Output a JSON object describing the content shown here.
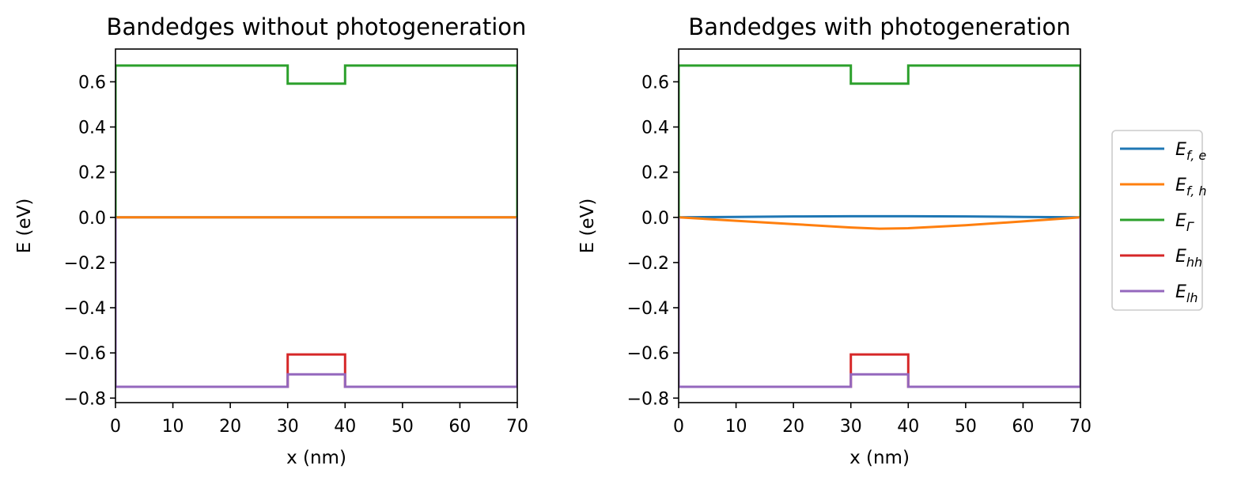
{
  "chart_data": [
    {
      "type": "line",
      "title": "Bandedges without photogeneration",
      "xlabel": "x (nm)",
      "ylabel": "E (eV)",
      "xlim": [
        0,
        70
      ],
      "ylim": [
        -0.82,
        0.745
      ],
      "xticks": [
        0,
        10,
        20,
        30,
        40,
        50,
        60,
        70
      ],
      "yticks": [
        -0.8,
        -0.6,
        -0.4,
        -0.2,
        0.0,
        0.2,
        0.4,
        0.6
      ],
      "series": [
        {
          "name": "E_f,e",
          "color": "#1f77b4",
          "x": [
            0,
            70
          ],
          "y": [
            0.0,
            0.0
          ]
        },
        {
          "name": "E_f,h",
          "color": "#ff7f0e",
          "x": [
            0,
            70
          ],
          "y": [
            0.0,
            0.0
          ]
        },
        {
          "name": "E_Γ",
          "color": "#2ca02c",
          "x": [
            0,
            0,
            30,
            30,
            40,
            40,
            70,
            70
          ],
          "y": [
            -0.75,
            0.672,
            0.672,
            0.592,
            0.592,
            0.672,
            0.672,
            -0.75
          ]
        },
        {
          "name": "E_hh",
          "color": "#d62728",
          "x": [
            0,
            30,
            30,
            40,
            40,
            70
          ],
          "y": [
            -0.75,
            -0.75,
            -0.607,
            -0.607,
            -0.75,
            -0.75
          ]
        },
        {
          "name": "E_lh",
          "color": "#9467bd",
          "x": [
            0,
            0,
            30,
            30,
            40,
            40,
            70,
            70
          ],
          "y": [
            0.0,
            -0.75,
            -0.75,
            -0.695,
            -0.695,
            -0.75,
            -0.75,
            0.0
          ]
        }
      ]
    },
    {
      "type": "line",
      "title": "Bandedges with photogeneration",
      "xlabel": "x (nm)",
      "ylabel": "E (eV)",
      "xlim": [
        0,
        70
      ],
      "ylim": [
        -0.82,
        0.745
      ],
      "xticks": [
        0,
        10,
        20,
        30,
        40,
        50,
        60,
        70
      ],
      "yticks": [
        -0.8,
        -0.6,
        -0.4,
        -0.2,
        0.0,
        0.2,
        0.4,
        0.6
      ],
      "legend_position": "right",
      "series": [
        {
          "name": "E_f,e",
          "color": "#1f77b4",
          "x": [
            0,
            10,
            20,
            30,
            35,
            40,
            50,
            60,
            70
          ],
          "y": [
            0.0,
            0.002,
            0.004,
            0.005,
            0.005,
            0.005,
            0.004,
            0.002,
            0.0
          ]
        },
        {
          "name": "E_f,h",
          "color": "#ff7f0e",
          "x": [
            0,
            10,
            20,
            30,
            35,
            40,
            50,
            60,
            70
          ],
          "y": [
            0.0,
            -0.015,
            -0.03,
            -0.045,
            -0.05,
            -0.048,
            -0.035,
            -0.018,
            0.0
          ]
        },
        {
          "name": "E_Γ",
          "color": "#2ca02c",
          "x": [
            0,
            0,
            30,
            30,
            40,
            40,
            70,
            70
          ],
          "y": [
            -0.75,
            0.672,
            0.672,
            0.592,
            0.592,
            0.672,
            0.672,
            -0.75
          ]
        },
        {
          "name": "E_hh",
          "color": "#d62728",
          "x": [
            0,
            30,
            30,
            40,
            40,
            70
          ],
          "y": [
            -0.75,
            -0.75,
            -0.607,
            -0.607,
            -0.75,
            -0.75
          ]
        },
        {
          "name": "E_lh",
          "color": "#9467bd",
          "x": [
            0,
            0,
            30,
            30,
            40,
            40,
            70,
            70
          ],
          "y": [
            0.0,
            -0.75,
            -0.75,
            -0.695,
            -0.695,
            -0.75,
            -0.75,
            0.0
          ]
        }
      ]
    }
  ],
  "legend": {
    "position": "right",
    "entries": [
      {
        "base": "E",
        "sub": "f, e",
        "color": "#1f77b4"
      },
      {
        "base": "E",
        "sub": "f, h",
        "color": "#ff7f0e"
      },
      {
        "base": "E",
        "sub": "Γ",
        "color": "#2ca02c"
      },
      {
        "base": "E",
        "sub": "hh",
        "color": "#d62728"
      },
      {
        "base": "E",
        "sub": "lh",
        "color": "#9467bd"
      }
    ]
  }
}
